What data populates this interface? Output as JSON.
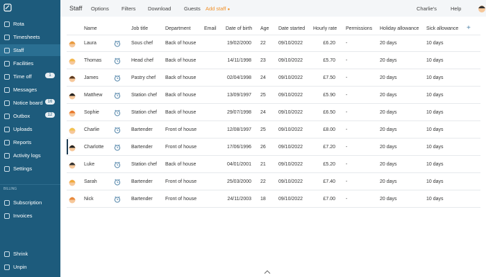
{
  "sidebar": {
    "items": [
      {
        "label": "Rota"
      },
      {
        "label": "Timesheets"
      },
      {
        "label": "Staff"
      },
      {
        "label": "Facilities"
      },
      {
        "label": "Time off",
        "badge": "1"
      },
      {
        "label": "Messages"
      },
      {
        "label": "Notice board",
        "badge": "16"
      },
      {
        "label": "Outbox",
        "badge": "12"
      },
      {
        "label": "Uploads"
      },
      {
        "label": "Reports"
      },
      {
        "label": "Activity logs"
      },
      {
        "label": "Settings"
      }
    ],
    "billing_label": "BILLING",
    "billing_items": [
      "Subscription",
      "Invoices"
    ],
    "footer_items": [
      "Shrink",
      "Unpin"
    ]
  },
  "header": {
    "title": "Staff",
    "actions": [
      "Options",
      "Filters",
      "Download",
      "Guests"
    ],
    "add_staff": "Add staff",
    "user_menu": "Charlie's",
    "help": "Help"
  },
  "table": {
    "columns": [
      "Name",
      "Job title",
      "Department",
      "Email",
      "Date of birth",
      "Age",
      "Date started",
      "Hourly rate",
      "Permissions",
      "Holiday allowance",
      "Sick allowance"
    ],
    "rows": [
      {
        "name": "Laura",
        "job_title": "Sous chef",
        "department": "Back of house",
        "date_of_birth": "19/02/2000",
        "age": 22,
        "date_started": "09/10/2022",
        "hourly_rate": "£6.20",
        "permissions": "-",
        "holiday_allowance": "20 days",
        "sick_allowance": "10 days"
      },
      {
        "name": "Thomas",
        "job_title": "Head chef",
        "department": "Back of house",
        "date_of_birth": "14/11/1998",
        "age": 23,
        "date_started": "09/10/2022",
        "hourly_rate": "£5.70",
        "permissions": "-",
        "holiday_allowance": "20 days",
        "sick_allowance": "10 days"
      },
      {
        "name": "James",
        "job_title": "Pastry chef",
        "department": "Back of house",
        "date_of_birth": "02/04/1998",
        "age": 24,
        "date_started": "09/10/2022",
        "hourly_rate": "£7.50",
        "permissions": "-",
        "holiday_allowance": "20 days",
        "sick_allowance": "10 days"
      },
      {
        "name": "Matthew",
        "job_title": "Station chef",
        "department": "Back of house",
        "date_of_birth": "13/09/1997",
        "age": 25,
        "date_started": "09/10/2022",
        "hourly_rate": "£5.90",
        "permissions": "-",
        "holiday_allowance": "20 days",
        "sick_allowance": "10 days"
      },
      {
        "name": "Sophie",
        "job_title": "Station chef",
        "department": "Back of house",
        "date_of_birth": "29/07/1998",
        "age": 24,
        "date_started": "09/10/2022",
        "hourly_rate": "£6.50",
        "permissions": "-",
        "holiday_allowance": "20 days",
        "sick_allowance": "10 days"
      },
      {
        "name": "Charlie",
        "job_title": "Bartender",
        "department": "Front of house",
        "date_of_birth": "12/08/1997",
        "age": 25,
        "date_started": "09/10/2022",
        "hourly_rate": "£8.00",
        "permissions": "-",
        "holiday_allowance": "20 days",
        "sick_allowance": "10 days"
      },
      {
        "name": "Charlotte",
        "job_title": "Bartender",
        "department": "Front of house",
        "date_of_birth": "17/06/1996",
        "age": 26,
        "date_started": "09/10/2022",
        "hourly_rate": "£7.20",
        "permissions": "-",
        "holiday_allowance": "20 days",
        "sick_allowance": "10 days"
      },
      {
        "name": "Luke",
        "job_title": "Station chef",
        "department": "Back of house",
        "date_of_birth": "04/01/2001",
        "age": 21,
        "date_started": "09/10/2022",
        "hourly_rate": "£5.20",
        "permissions": "-",
        "holiday_allowance": "20 days",
        "sick_allowance": "10 days"
      },
      {
        "name": "Sarah",
        "job_title": "Bartender",
        "department": "Front of house",
        "date_of_birth": "25/03/2000",
        "age": 22,
        "date_started": "09/10/2022",
        "hourly_rate": "£7.40",
        "permissions": "-",
        "holiday_allowance": "20 days",
        "sick_allowance": "10 days"
      },
      {
        "name": "Nick",
        "job_title": "Bartender",
        "department": "Front of house",
        "date_of_birth": "24/11/2003",
        "age": 18,
        "date_started": "09/10/2022",
        "hourly_rate": "£7.00",
        "permissions": "-",
        "holiday_allowance": "20 days",
        "sick_allowance": "10 days"
      }
    ]
  }
}
